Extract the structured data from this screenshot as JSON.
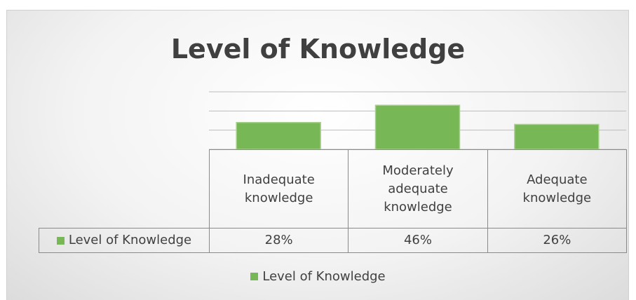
{
  "chart_data": {
    "type": "bar",
    "title": "Level of Knowledge",
    "categories": [
      "Inadequate knowledge",
      "Moderately adequate knowledge",
      "Adequate knowledge"
    ],
    "series": [
      {
        "name": "Level of Knowledge",
        "color": "#78b755",
        "values": [
          28,
          46,
          26
        ],
        "value_labels": [
          "28%",
          "46%",
          "26%"
        ]
      }
    ],
    "ylim": [
      0,
      60
    ],
    "yticks": [
      0,
      20,
      40,
      60
    ],
    "grid": true
  }
}
